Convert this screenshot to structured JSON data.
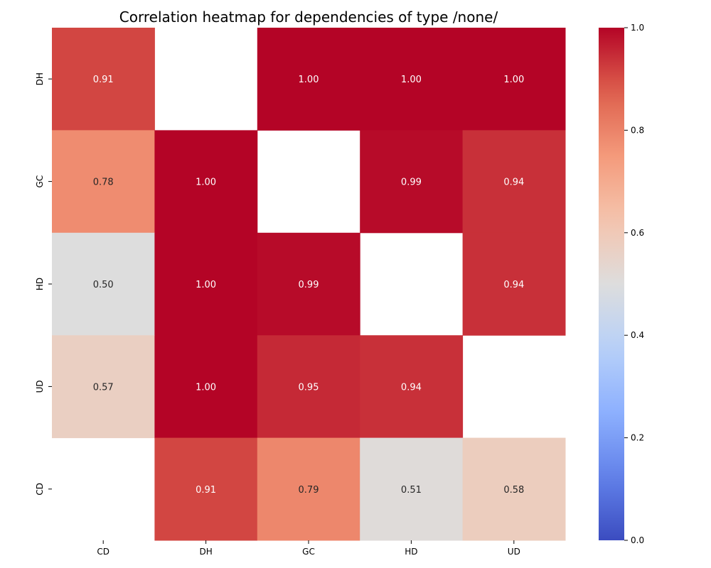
{
  "chart_data": {
    "type": "heatmap",
    "title": "Correlation heatmap for dependencies of type /none/",
    "xlabel": "",
    "ylabel": "",
    "x_categories": [
      "CD",
      "DH",
      "GC",
      "HD",
      "UD"
    ],
    "y_categories": [
      "DH",
      "GC",
      "HD",
      "UD",
      "CD"
    ],
    "values": [
      [
        0.91,
        null,
        1.0,
        1.0,
        1.0
      ],
      [
        0.78,
        1.0,
        null,
        0.99,
        0.94
      ],
      [
        0.5,
        1.0,
        0.99,
        null,
        0.94
      ],
      [
        0.57,
        1.0,
        0.95,
        0.94,
        null
      ],
      [
        null,
        0.91,
        0.79,
        0.51,
        0.58
      ]
    ],
    "value_labels": [
      [
        "0.91",
        "",
        "1.00",
        "1.00",
        "1.00"
      ],
      [
        "0.78",
        "1.00",
        "",
        "0.99",
        "0.94"
      ],
      [
        "0.50",
        "1.00",
        "0.99",
        "",
        "0.94"
      ],
      [
        "0.57",
        "1.00",
        "0.95",
        "0.94",
        ""
      ],
      [
        "",
        "0.91",
        "0.79",
        "0.51",
        "0.58"
      ]
    ],
    "colorbar": {
      "range": [
        0.0,
        1.0
      ],
      "ticks": [
        0.0,
        0.2,
        0.4,
        0.6,
        0.8,
        1.0
      ],
      "tick_labels": [
        "0.0",
        "0.2",
        "0.4",
        "0.6",
        "0.8",
        "1.0"
      ],
      "colormap": "coolwarm"
    }
  }
}
